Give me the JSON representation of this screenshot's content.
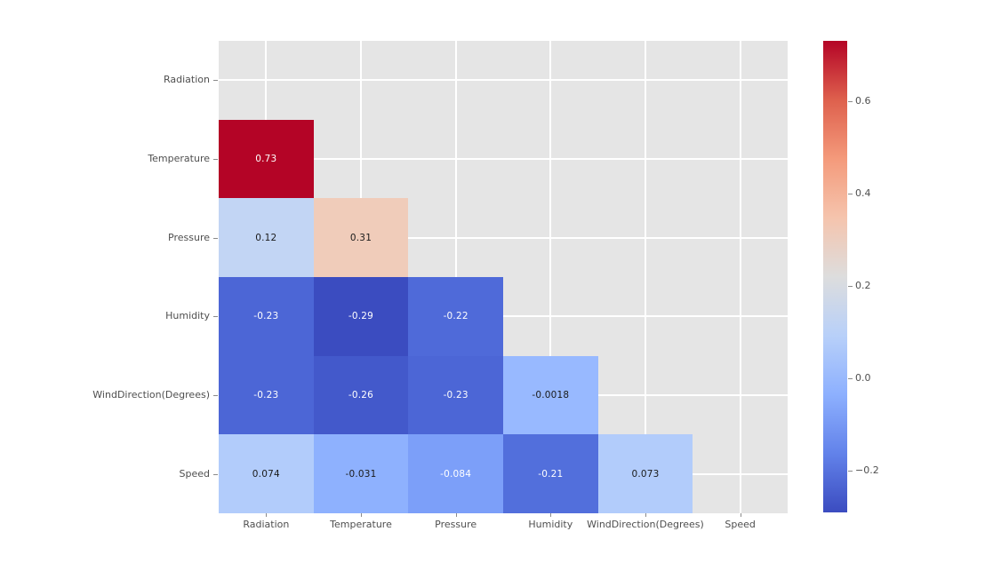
{
  "figure": {
    "background": "#ffffff",
    "axes_background": "#e5e5e5",
    "grid_color": "#ffffff",
    "tick_label_color": "#4f4f4f",
    "tick_mark_color": "#8a8a8a"
  },
  "chart_data": {
    "type": "heatmap",
    "subtype": "correlation-matrix-lower-triangle",
    "title": "",
    "variables": [
      "Radiation",
      "Temperature",
      "Pressure",
      "Humidity",
      "WindDirection(Degrees)",
      "Speed"
    ],
    "mask": "upper triangle and diagonal hidden",
    "colormap": "coolwarm",
    "vmin": -0.29,
    "vmax": 0.73,
    "grid": true,
    "cells": [
      {
        "row": 1,
        "col": 0,
        "row_var": "Temperature",
        "col_var": "Radiation",
        "value": 0.73,
        "label": "0.73",
        "color": "#b40426",
        "text_color": "#ffffff"
      },
      {
        "row": 2,
        "col": 0,
        "row_var": "Pressure",
        "col_var": "Radiation",
        "value": 0.12,
        "label": "0.12",
        "color": "#c2d5f4",
        "text_color": "#1a1a1a"
      },
      {
        "row": 2,
        "col": 1,
        "row_var": "Pressure",
        "col_var": "Temperature",
        "value": 0.31,
        "label": "0.31",
        "color": "#f0ccba",
        "text_color": "#1a1a1a"
      },
      {
        "row": 3,
        "col": 0,
        "row_var": "Humidity",
        "col_var": "Radiation",
        "value": -0.23,
        "label": "-0.23",
        "color": "#4c66d6",
        "text_color": "#ffffff"
      },
      {
        "row": 3,
        "col": 1,
        "row_var": "Humidity",
        "col_var": "Temperature",
        "value": -0.29,
        "label": "-0.29",
        "color": "#3b4cc0",
        "text_color": "#ffffff"
      },
      {
        "row": 3,
        "col": 2,
        "row_var": "Humidity",
        "col_var": "Pressure",
        "value": -0.22,
        "label": "-0.22",
        "color": "#4f6ad9",
        "text_color": "#ffffff"
      },
      {
        "row": 4,
        "col": 0,
        "row_var": "WindDirection(Degrees)",
        "col_var": "Radiation",
        "value": -0.23,
        "label": "-0.23",
        "color": "#4c66d6",
        "text_color": "#ffffff"
      },
      {
        "row": 4,
        "col": 1,
        "row_var": "WindDirection(Degrees)",
        "col_var": "Temperature",
        "value": -0.26,
        "label": "-0.26",
        "color": "#4359cb",
        "text_color": "#ffffff"
      },
      {
        "row": 4,
        "col": 2,
        "row_var": "WindDirection(Degrees)",
        "col_var": "Pressure",
        "value": -0.23,
        "label": "-0.23",
        "color": "#4c66d6",
        "text_color": "#ffffff"
      },
      {
        "row": 4,
        "col": 3,
        "row_var": "WindDirection(Degrees)",
        "col_var": "Humidity",
        "value": -0.0018,
        "label": "-0.0018",
        "color": "#98b9ff",
        "text_color": "#1a1a1a"
      },
      {
        "row": 5,
        "col": 0,
        "row_var": "Speed",
        "col_var": "Radiation",
        "value": 0.074,
        "label": "0.074",
        "color": "#b2ccfb",
        "text_color": "#1a1a1a"
      },
      {
        "row": 5,
        "col": 1,
        "row_var": "Speed",
        "col_var": "Temperature",
        "value": -0.031,
        "label": "-0.031",
        "color": "#8eb1fe",
        "text_color": "#1a1a1a"
      },
      {
        "row": 5,
        "col": 2,
        "row_var": "Speed",
        "col_var": "Pressure",
        "value": -0.084,
        "label": "-0.084",
        "color": "#7c9ff9",
        "text_color": "#ffffff"
      },
      {
        "row": 5,
        "col": 3,
        "row_var": "Speed",
        "col_var": "Humidity",
        "value": -0.21,
        "label": "-0.21",
        "color": "#526fdc",
        "text_color": "#ffffff"
      },
      {
        "row": 5,
        "col": 4,
        "row_var": "Speed",
        "col_var": "WindDirection(Degrees)",
        "value": 0.073,
        "label": "0.073",
        "color": "#b2ccfb",
        "text_color": "#1a1a1a"
      }
    ],
    "colorbar": {
      "position": "right",
      "ticks": [
        {
          "label": "0.6",
          "value": 0.6
        },
        {
          "label": "0.4",
          "value": 0.4
        },
        {
          "label": "0.2",
          "value": 0.2
        },
        {
          "label": "0.0",
          "value": 0.0
        },
        {
          "label": "−0.2",
          "value": -0.2
        }
      ],
      "gradient_stops": [
        {
          "pos": 0.0,
          "color": "#3b4cc0"
        },
        {
          "pos": 0.125,
          "color": "#6282ea"
        },
        {
          "pos": 0.25,
          "color": "#8db0fe"
        },
        {
          "pos": 0.375,
          "color": "#b8d0f9"
        },
        {
          "pos": 0.5,
          "color": "#dddddd"
        },
        {
          "pos": 0.625,
          "color": "#f5c4ad"
        },
        {
          "pos": 0.75,
          "color": "#f49a7b"
        },
        {
          "pos": 0.875,
          "color": "#de604d"
        },
        {
          "pos": 1.0,
          "color": "#b40426"
        }
      ]
    }
  }
}
